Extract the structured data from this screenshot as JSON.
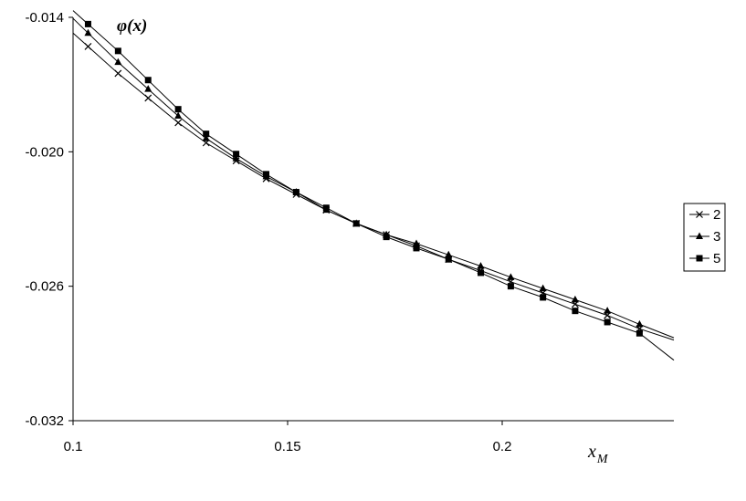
{
  "chart_data": {
    "type": "line",
    "title": "",
    "ylabel": "φ(x)",
    "xlabel": "x",
    "xlabel_sub": "M",
    "xlim": [
      0.1,
      0.24
    ],
    "ylim": [
      -0.032,
      -0.014
    ],
    "x_ticks": [
      "0.1",
      "0.15",
      "0.2"
    ],
    "x_tick_values": [
      0.1,
      0.15,
      0.2
    ],
    "y_ticks": [
      "-0.014",
      "-0.020",
      "-0.026",
      "-0.032"
    ],
    "y_tick_values": [
      -0.014,
      -0.02,
      -0.026,
      -0.032
    ],
    "grid": false,
    "legend_position": "right",
    "x": [
      0.1035,
      0.1105,
      0.1175,
      0.1245,
      0.131,
      0.138,
      0.145,
      0.152,
      0.159,
      0.166,
      0.173,
      0.18,
      0.1875,
      0.195,
      0.202,
      0.2095,
      0.217,
      0.2245,
      0.232
    ],
    "series": [
      {
        "name": "2",
        "marker": "x",
        "values": [
          -0.0153,
          -0.0165,
          -0.0176,
          -0.0187,
          -0.0196,
          -0.0204,
          -0.0212,
          -0.0219,
          -0.0226,
          -0.0232,
          -0.0237,
          -0.0242,
          -0.0248,
          -0.0253,
          -0.0258,
          -0.0263,
          -0.0268,
          -0.0273,
          -0.0279
        ],
        "curve_end": [
          0.24,
          -0.0284
        ]
      },
      {
        "name": "3",
        "marker": "triangle",
        "values": [
          -0.0147,
          -0.016,
          -0.0172,
          -0.0184,
          -0.0194,
          -0.0203,
          -0.0211,
          -0.0218,
          -0.0226,
          -0.0232,
          -0.0237,
          -0.0241,
          -0.0246,
          -0.0251,
          -0.0256,
          -0.0261,
          -0.0266,
          -0.0271,
          -0.0277
        ],
        "curve_end": [
          0.24,
          -0.0283
        ]
      },
      {
        "name": "5",
        "marker": "square",
        "values": [
          -0.0143,
          -0.0155,
          -0.0168,
          -0.0181,
          -0.0192,
          -0.0201,
          -0.021,
          -0.0218,
          -0.0225,
          -0.0232,
          -0.0238,
          -0.0243,
          -0.0248,
          -0.0254,
          -0.026,
          -0.0265,
          -0.0271,
          -0.0276,
          -0.0281
        ],
        "curve_end": [
          0.24,
          -0.0293
        ]
      }
    ]
  }
}
